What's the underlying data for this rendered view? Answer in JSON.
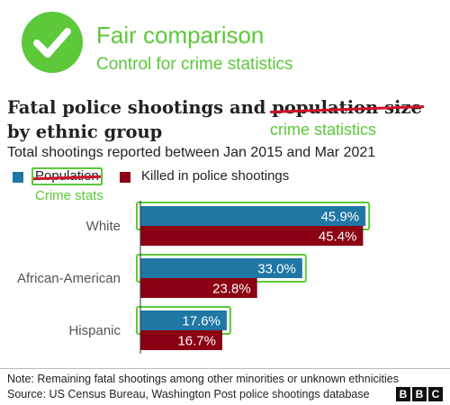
{
  "header": {
    "fair_title": "Fair comparison",
    "fair_subtitle": "Control for crime statistics",
    "icon": "checkmark-icon"
  },
  "title": {
    "line1_prefix": "Fatal police shootings and ",
    "line1_struck": "population size",
    "line2": "by ethnic group",
    "replacement": "crime statistics"
  },
  "subtitle": "Total shootings reported between Jan 2015 and Mar 2021",
  "legend": {
    "series1_label": "Population",
    "series1_replacement": "Crime stats",
    "series2_label": "Killed in police shootings"
  },
  "colors": {
    "accent_green": "#5cc83a",
    "strike_red": "#ce1126",
    "series1": "#1f77a4",
    "series2": "#8b0012"
  },
  "chart_data": {
    "type": "bar",
    "orientation": "horizontal",
    "categories": [
      "White",
      "African-American",
      "Hispanic"
    ],
    "series": [
      {
        "name": "Population",
        "values": [
          45.9,
          33.0,
          17.6
        ],
        "labels": [
          "45.9%",
          "33.0%",
          "17.6%"
        ]
      },
      {
        "name": "Killed in police shootings",
        "values": [
          45.4,
          23.8,
          16.7
        ],
        "labels": [
          "45.4%",
          "23.8%",
          "16.7%"
        ]
      }
    ],
    "xlim": [
      0,
      50
    ],
    "highlighted_series": "Population",
    "grid": false,
    "legend_position": "top-left"
  },
  "footer": {
    "note": "Note: Remaining fatal shootings among other minorities or unknown ethnicities",
    "source": "Source: US Census Bureau, Washington Post police shootings database",
    "logo_letters": [
      "B",
      "B",
      "C"
    ]
  }
}
